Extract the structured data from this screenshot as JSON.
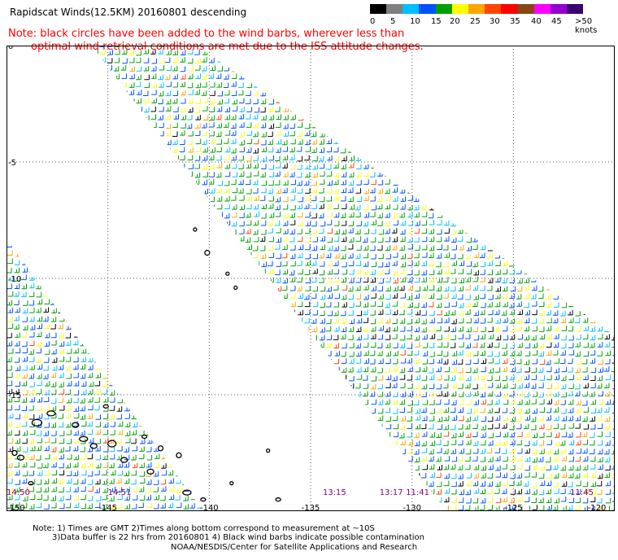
{
  "title": "Rapidscat Winds(12.5KM) 20160801 descending",
  "note": {
    "line1": "Note: black circles have been added to the wind barbs, wherever less than",
    "line2": "optimal wind retrieval conditions are met due to the ISS attitude changes."
  },
  "colorbar": {
    "colors": [
      "#000000",
      "#7f7f7f",
      "#00bfff",
      "#0050ff",
      "#00a000",
      "#ffff00",
      "#ffa500",
      "#ff4500",
      "#ff0000",
      "#8b4513",
      "#ff00ff",
      "#9400d3",
      "#3a0070"
    ],
    "labels": [
      "0",
      "5",
      "10",
      "15",
      "20",
      "25",
      "30",
      "35",
      "40",
      "45",
      ">50 knots"
    ]
  },
  "map": {
    "lon_range": [
      -150,
      -120
    ],
    "lat_range": [
      0,
      -20
    ],
    "lat_labels": [
      "0",
      "-5",
      "-10",
      "-15",
      "-20"
    ],
    "lon_labels": [
      "-150",
      "-145",
      "-140",
      "-135",
      "-130",
      "-125",
      "-120"
    ],
    "pass_times": [
      {
        "label": "14:50",
        "lon": -150
      },
      {
        "label": "14:51",
        "lon": -145
      },
      {
        "label": "13:15",
        "lon": -134.4
      },
      {
        "label": "13:17",
        "lon": -131.6
      },
      {
        "label": "11:41",
        "lon": -130.3
      },
      {
        "label": "11:45",
        "lon": -122.2
      }
    ],
    "time_color": "#800080"
  },
  "footer": {
    "line1": "Note: 1) Times are GMT 2)Times along bottom correspond to measurement at ~10S",
    "line2": "3)Data buffer is 22 hrs from 20160801 4) Black wind barbs indicate possible contamination",
    "line3": "NOAA/NESDIS/Center for Satellite Applications and Research"
  }
}
